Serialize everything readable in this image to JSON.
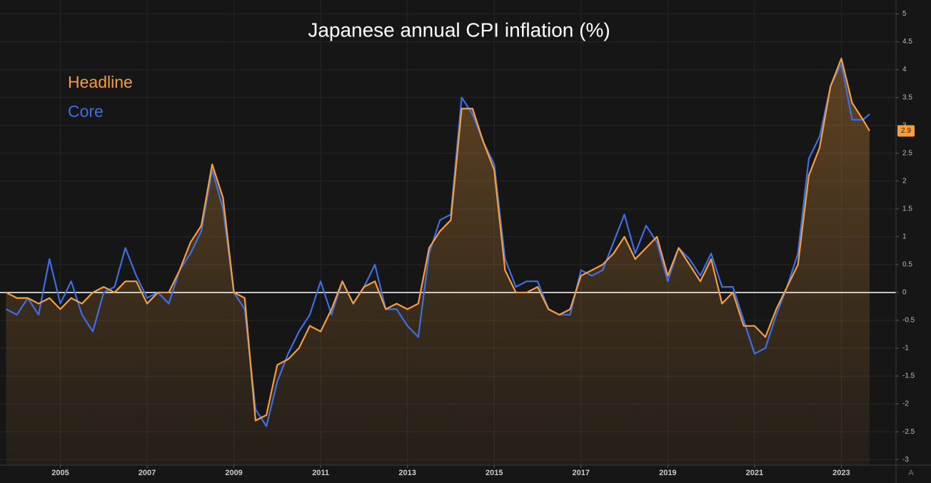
{
  "chart_data": {
    "type": "line",
    "title": "Japanese annual CPI inflation (%)",
    "x": [
      2003.75,
      2004,
      2004.25,
      2004.5,
      2004.75,
      2005,
      2005.25,
      2005.5,
      2005.75,
      2006,
      2006.25,
      2006.5,
      2006.75,
      2007,
      2007.25,
      2007.5,
      2007.75,
      2008,
      2008.25,
      2008.5,
      2008.75,
      2009,
      2009.25,
      2009.5,
      2009.75,
      2010,
      2010.25,
      2010.5,
      2010.75,
      2011,
      2011.25,
      2011.5,
      2011.75,
      2012,
      2012.25,
      2012.5,
      2012.75,
      2013,
      2013.25,
      2013.5,
      2013.75,
      2014,
      2014.25,
      2014.5,
      2014.75,
      2015,
      2015.25,
      2015.5,
      2015.75,
      2016,
      2016.25,
      2016.5,
      2016.75,
      2017,
      2017.25,
      2017.5,
      2017.75,
      2018,
      2018.25,
      2018.5,
      2018.75,
      2019,
      2019.25,
      2019.5,
      2019.75,
      2020,
      2020.25,
      2020.5,
      2020.75,
      2021,
      2021.25,
      2021.5,
      2021.75,
      2022,
      2022.25,
      2022.5,
      2022.75,
      2023,
      2023.25,
      2023.5,
      2023.65
    ],
    "series": [
      {
        "name": "Headline",
        "color": "#f5a03c",
        "values": [
          0.0,
          -0.1,
          -0.1,
          -0.2,
          -0.1,
          -0.3,
          -0.1,
          -0.2,
          0.0,
          0.1,
          0.0,
          0.2,
          0.2,
          -0.2,
          0.0,
          0.0,
          0.4,
          0.9,
          1.2,
          2.3,
          1.7,
          0.0,
          -0.1,
          -2.3,
          -2.2,
          -1.3,
          -1.2,
          -1.0,
          -0.6,
          -0.7,
          -0.3,
          0.2,
          -0.2,
          0.1,
          0.2,
          -0.3,
          -0.2,
          -0.3,
          -0.2,
          0.8,
          1.1,
          1.3,
          3.3,
          3.3,
          2.7,
          2.2,
          0.4,
          0.0,
          0.0,
          0.1,
          -0.3,
          -0.4,
          -0.3,
          0.3,
          0.4,
          0.5,
          0.7,
          1.0,
          0.6,
          0.8,
          1.0,
          0.3,
          0.8,
          0.5,
          0.2,
          0.6,
          -0.2,
          0.0,
          -0.6,
          -0.6,
          -0.8,
          -0.3,
          0.1,
          0.5,
          2.1,
          2.6,
          3.7,
          4.2,
          3.4,
          3.1,
          2.9
        ]
      },
      {
        "name": "Core",
        "color": "#3d6fe6",
        "values": [
          -0.3,
          -0.4,
          -0.1,
          -0.4,
          0.6,
          -0.2,
          0.2,
          -0.4,
          -0.7,
          0.0,
          0.1,
          0.8,
          0.3,
          -0.1,
          0.0,
          -0.2,
          0.4,
          0.7,
          1.1,
          2.2,
          1.5,
          0.0,
          -0.3,
          -2.1,
          -2.4,
          -1.6,
          -1.1,
          -0.7,
          -0.4,
          0.2,
          -0.4,
          0.2,
          -0.2,
          0.1,
          0.5,
          -0.3,
          -0.3,
          -0.6,
          -0.8,
          0.7,
          1.3,
          1.4,
          3.5,
          3.2,
          2.7,
          2.3,
          0.6,
          0.1,
          0.2,
          0.2,
          -0.3,
          -0.4,
          -0.4,
          0.4,
          0.3,
          0.4,
          0.9,
          1.4,
          0.7,
          1.2,
          0.9,
          0.2,
          0.8,
          0.6,
          0.3,
          0.7,
          0.1,
          0.1,
          -0.5,
          -1.1,
          -1.0,
          -0.4,
          0.1,
          0.7,
          2.4,
          2.8,
          3.7,
          4.1,
          3.1,
          3.1,
          3.2
        ]
      }
    ],
    "xlim": [
      2003.61,
      2024.26
    ],
    "xticks": [
      2005,
      2007,
      2009,
      2011,
      2013,
      2015,
      2017,
      2019,
      2021,
      2023
    ],
    "ylim": [
      -3.1,
      5.25
    ],
    "yticks": [
      -3,
      -2.5,
      -2,
      -1.5,
      -1,
      -0.5,
      0,
      0.5,
      1,
      1.5,
      2,
      2.5,
      3,
      3.5,
      4,
      4.5,
      5
    ],
    "baseline": 0,
    "grid": true,
    "last_value_label": "2.9",
    "auto_scale_button": "A"
  }
}
